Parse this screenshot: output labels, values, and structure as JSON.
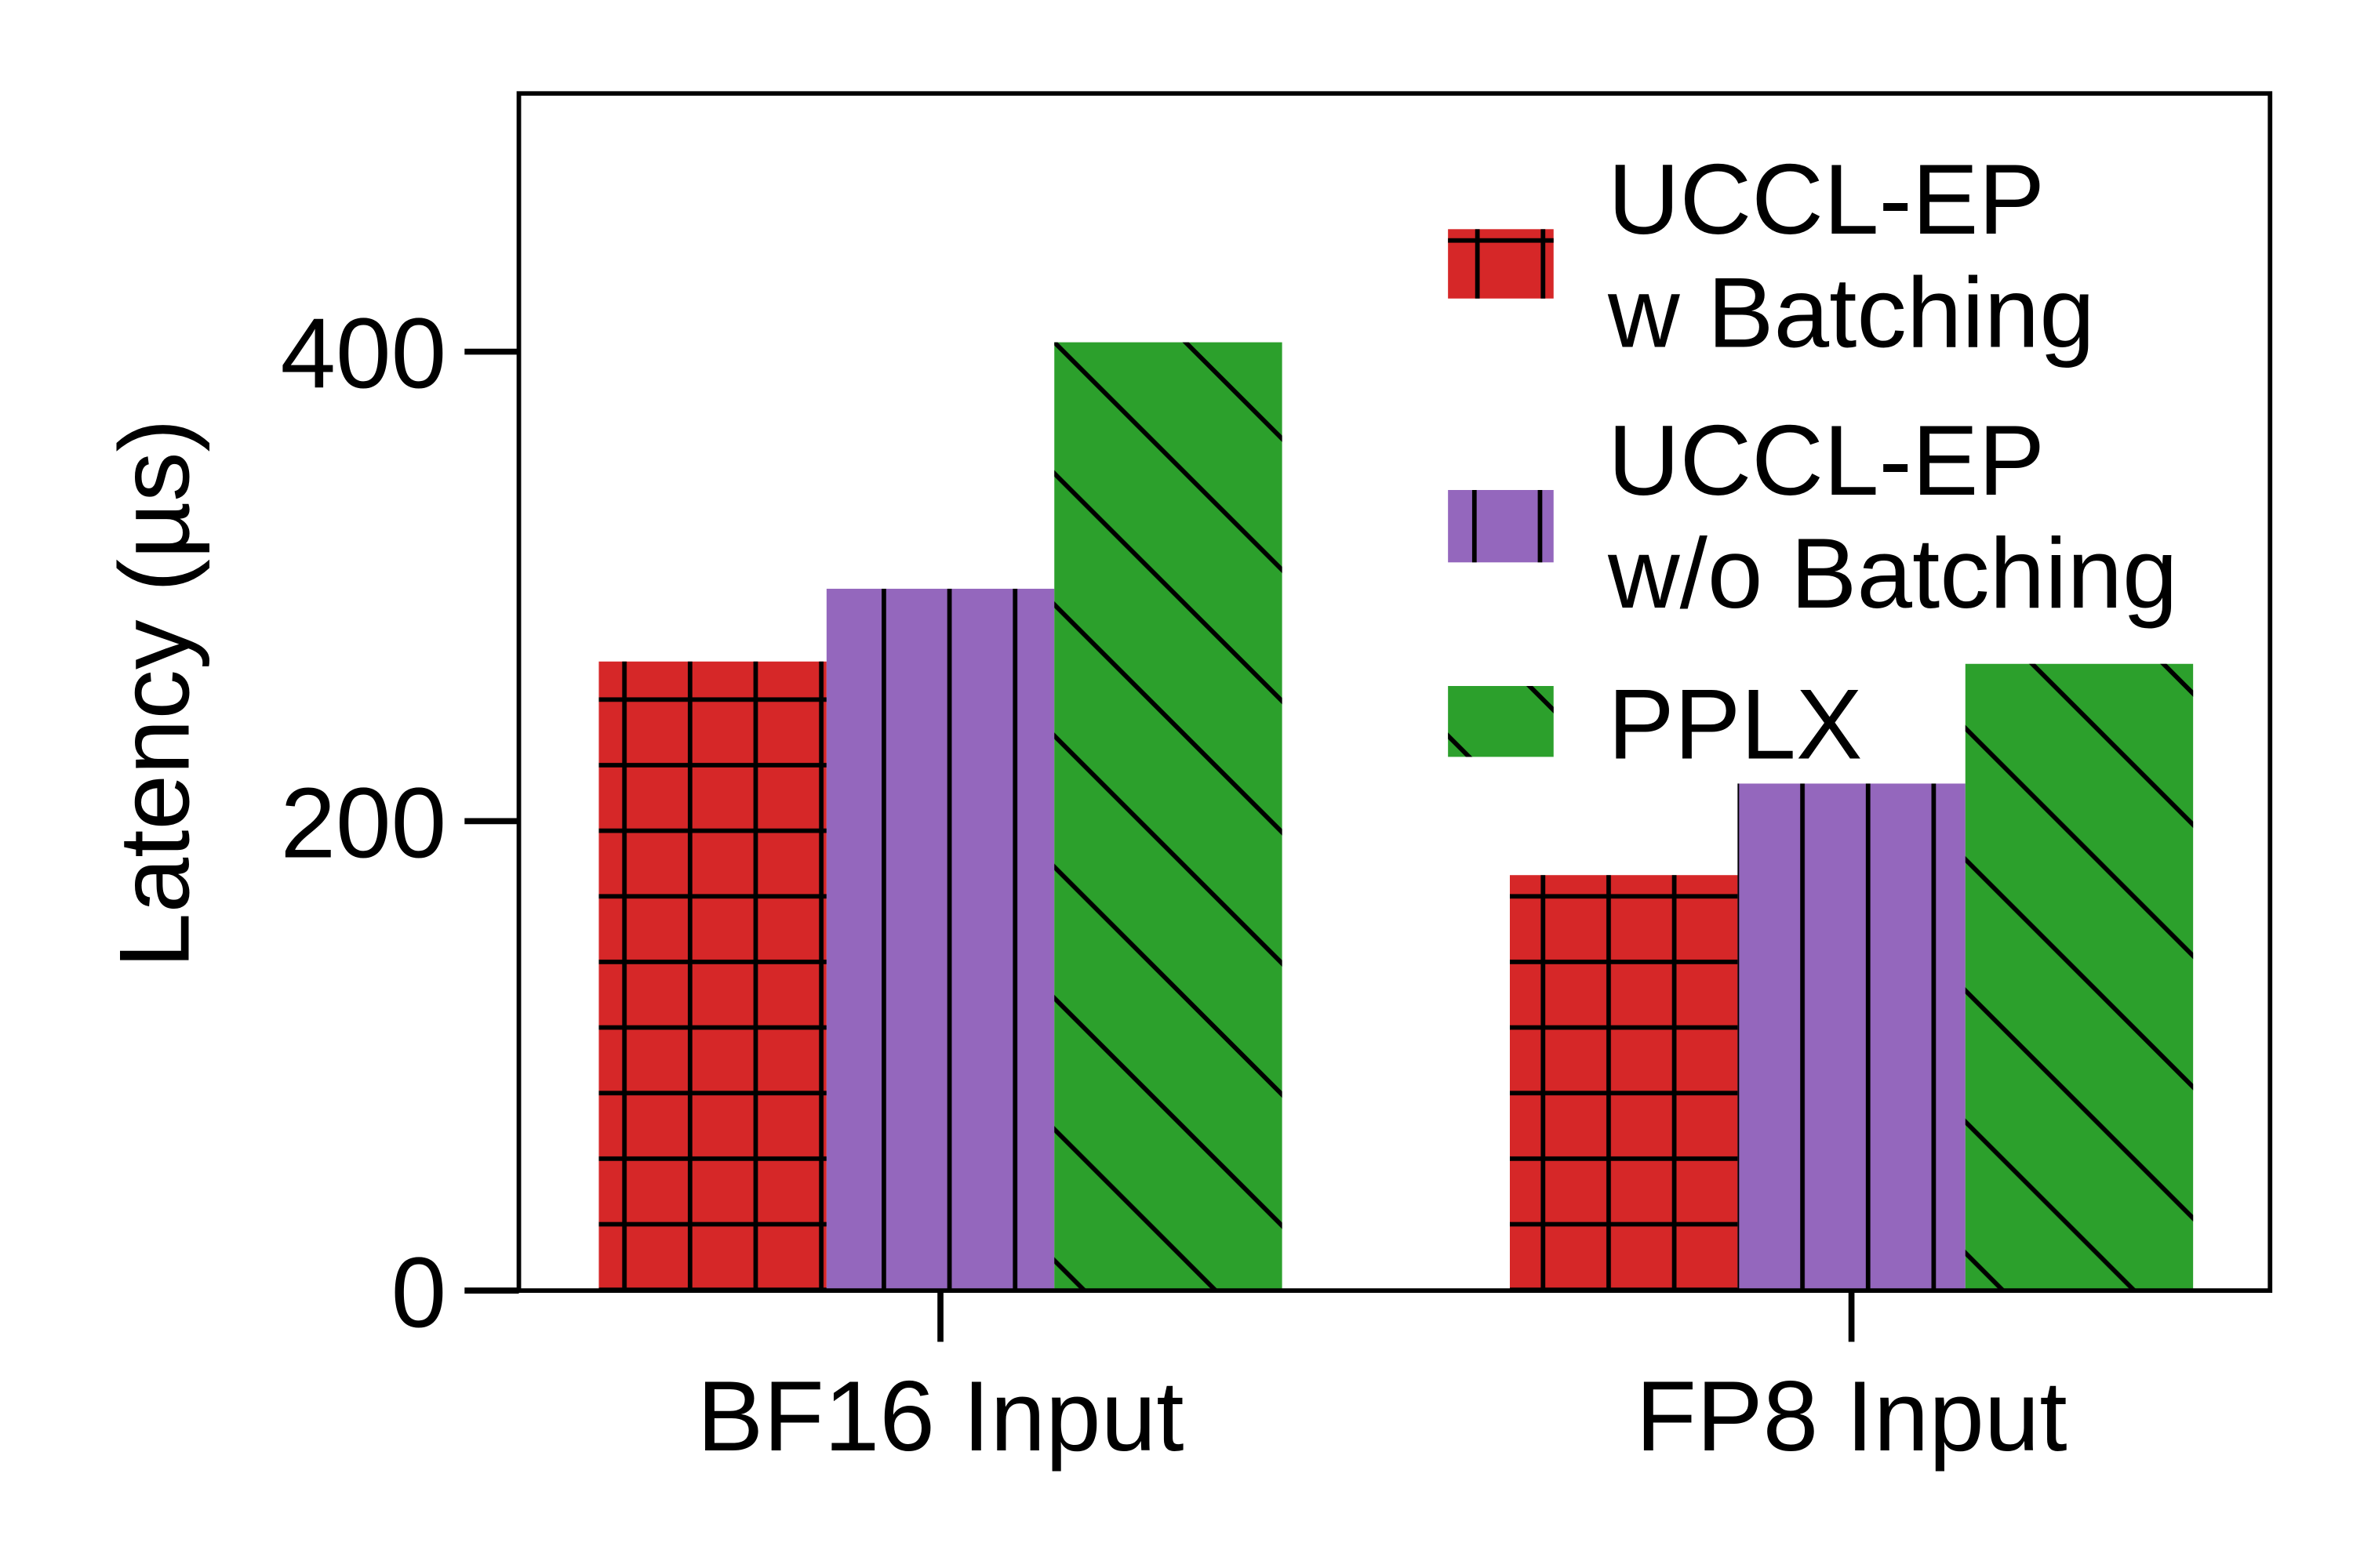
{
  "chart_data": {
    "type": "bar",
    "categories": [
      "BF16 Input",
      "FP8 Input"
    ],
    "series": [
      {
        "name": "UCCL-EP w Batching",
        "label_lines": [
          "UCCL-EP",
          "w Batching"
        ],
        "values": [
          268,
          177
        ],
        "color": "#d62728",
        "hatch": "grid"
      },
      {
        "name": "UCCL-EP w/o Batching",
        "label_lines": [
          "UCCL-EP",
          "w/o Batching"
        ],
        "values": [
          299,
          216
        ],
        "color": "#9467bd",
        "hatch": "vertical"
      },
      {
        "name": "PPLX",
        "label_lines": [
          "PPLX"
        ],
        "values": [
          404,
          267
        ],
        "color": "#2ca02c",
        "hatch": "diagonal"
      }
    ],
    "xlabel": "",
    "ylabel": "Latency (µs)",
    "ylim": [
      0,
      510
    ],
    "yticks": [
      "0",
      "200",
      "400"
    ],
    "grid": false,
    "legend_position": "top-right"
  }
}
